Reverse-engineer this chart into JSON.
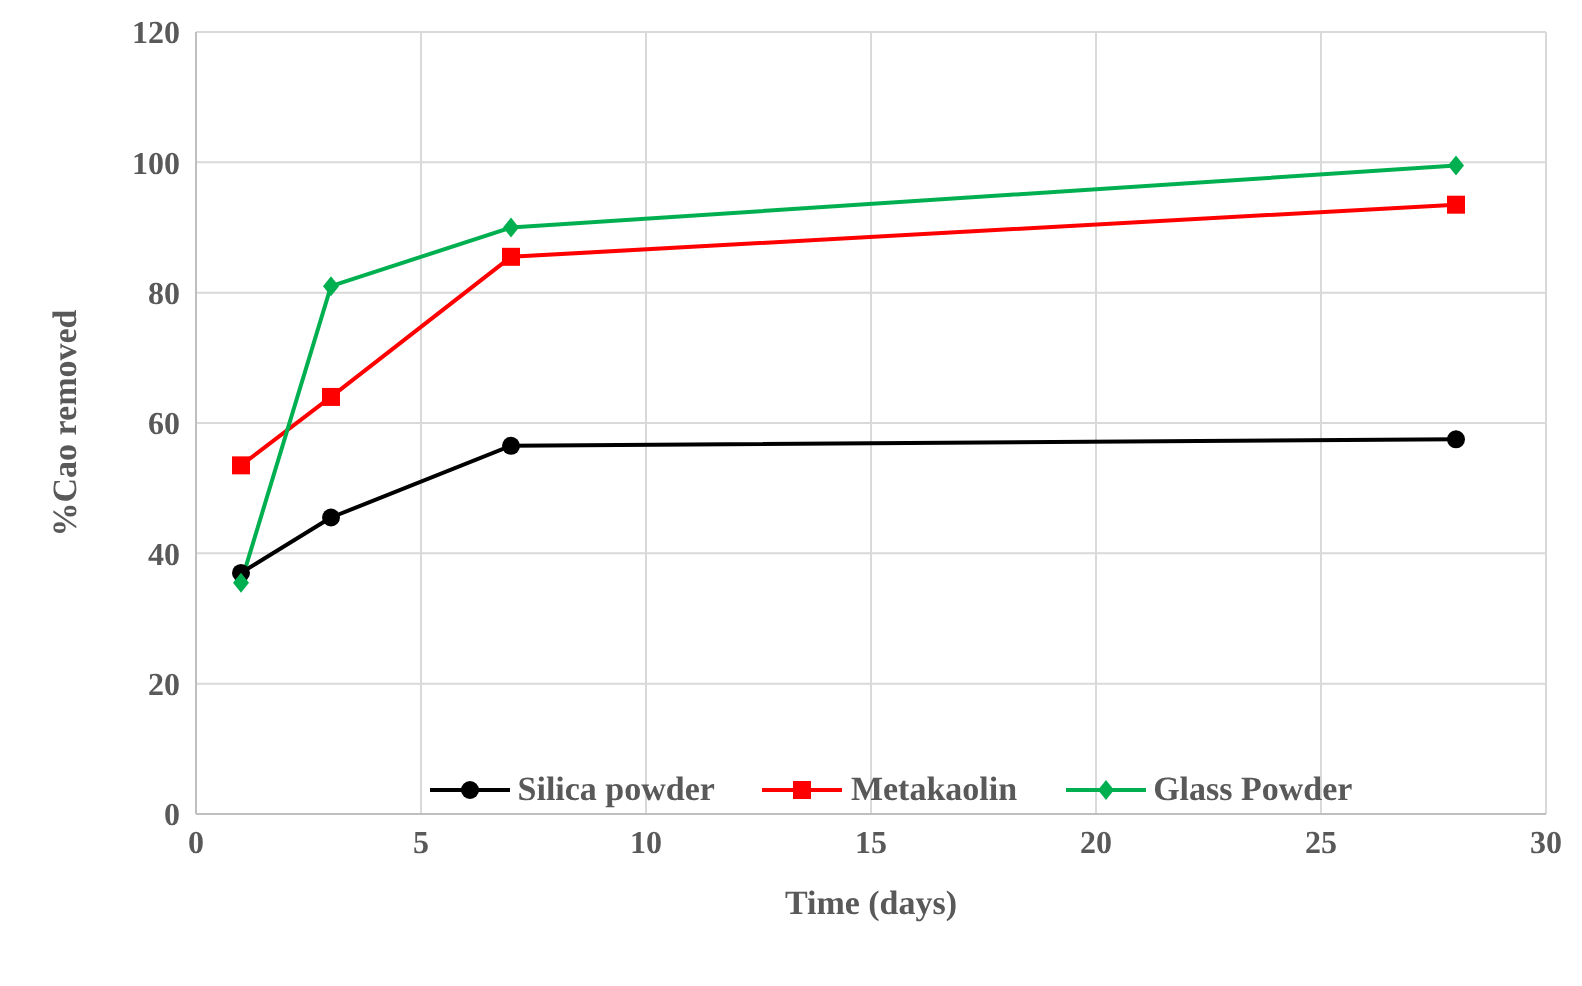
{
  "chart_data": {
    "type": "line",
    "xlabel": "Time (days)",
    "ylabel": "%Cao removed",
    "x": [
      1,
      3,
      7,
      28
    ],
    "series": [
      {
        "name": "Silica powder",
        "color": "#000000",
        "marker": "circle",
        "values": [
          37,
          45.5,
          56.5,
          57.5
        ]
      },
      {
        "name": "Metakaolin",
        "color": "#ff0000",
        "marker": "square",
        "values": [
          53.5,
          64,
          85.5,
          93.5
        ]
      },
      {
        "name": "Glass Powder",
        "color": "#00b050",
        "marker": "diamond",
        "values": [
          35.5,
          81,
          90,
          99.5
        ]
      }
    ],
    "xlim": [
      0,
      30
    ],
    "xticks": [
      0,
      5,
      10,
      15,
      20,
      25,
      30
    ],
    "ylim": [
      0,
      120
    ],
    "yticks": [
      0,
      20,
      40,
      60,
      80,
      100,
      120
    ],
    "grid": true,
    "legend": "bottom"
  }
}
